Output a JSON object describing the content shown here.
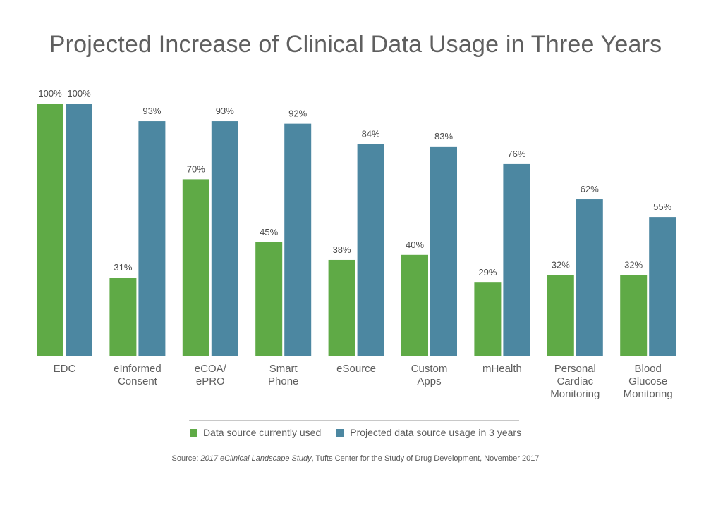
{
  "colors": {
    "current": "#5faa46",
    "projected": "#4c87a1",
    "text": "#5f5f5f",
    "label": "#4a4a4a"
  },
  "chart_data": {
    "type": "bar",
    "title": "Projected Increase of Clinical Data Usage in Three Years",
    "categories": [
      [
        "EDC"
      ],
      [
        "eInformed",
        "Consent"
      ],
      [
        "eCOA/",
        "ePRO"
      ],
      [
        "Smart",
        "Phone"
      ],
      [
        "eSource"
      ],
      [
        "Custom",
        "Apps"
      ],
      [
        "mHealth"
      ],
      [
        "Personal",
        "Cardiac",
        "Monitoring"
      ],
      [
        "Blood",
        "Glucose",
        "Monitoring"
      ]
    ],
    "series": [
      {
        "name": "Data source currently used",
        "values": [
          100,
          31,
          70,
          45,
          38,
          40,
          29,
          32,
          32
        ],
        "labels": [
          "100%",
          "31%",
          "70%",
          "45%",
          "38%",
          "40%",
          "29%",
          "32%",
          "32%"
        ]
      },
      {
        "name": "Projected data source usage in 3 years",
        "values": [
          100,
          93,
          93,
          92,
          84,
          83,
          76,
          62,
          55
        ],
        "labels": [
          "100%",
          "93%",
          "93%",
          "92%",
          "84%",
          "83%",
          "76%",
          "62%",
          "55%"
        ]
      }
    ],
    "ylim": [
      0,
      100
    ],
    "xlabel": "",
    "ylabel": "",
    "grid": false,
    "legend_position": "bottom"
  },
  "source": {
    "prefix": "Source: ",
    "study": "2017 eClinical Landscape Study",
    "suffix": ", Tufts Center for the Study of Drug Development, November 2017"
  }
}
